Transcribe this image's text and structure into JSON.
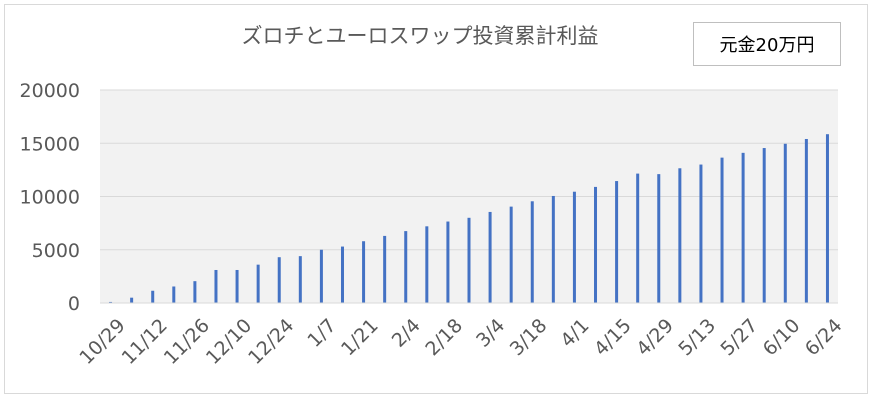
{
  "chart_data": {
    "type": "bar",
    "title": "ズロチとユーロスワップ投資累計利益",
    "annotation": "元金20万円",
    "ylim": [
      0,
      20000
    ],
    "yticks": [
      0,
      5000,
      10000,
      15000,
      20000
    ],
    "grid": true,
    "legend": "none",
    "bar_color": "#4472C4",
    "plot_background": "#f2f2f2",
    "x_tick_labels": [
      "10/29",
      "11/12",
      "11/26",
      "12/10",
      "12/24",
      "1/7",
      "1/21",
      "2/4",
      "2/18",
      "3/4",
      "3/18",
      "4/1",
      "4/15",
      "4/29",
      "5/13",
      "5/27",
      "6/10",
      "6/24"
    ],
    "values": [
      100,
      500,
      1150,
      1550,
      2050,
      3100,
      3100,
      3600,
      4300,
      4400,
      5000,
      5300,
      5800,
      6300,
      6750,
      7200,
      7650,
      8000,
      8550,
      9050,
      9550,
      10050,
      10450,
      10900,
      11450,
      12150,
      12100,
      12650,
      13000,
      13650,
      14100,
      14550,
      14950,
      15400,
      15850
    ]
  }
}
